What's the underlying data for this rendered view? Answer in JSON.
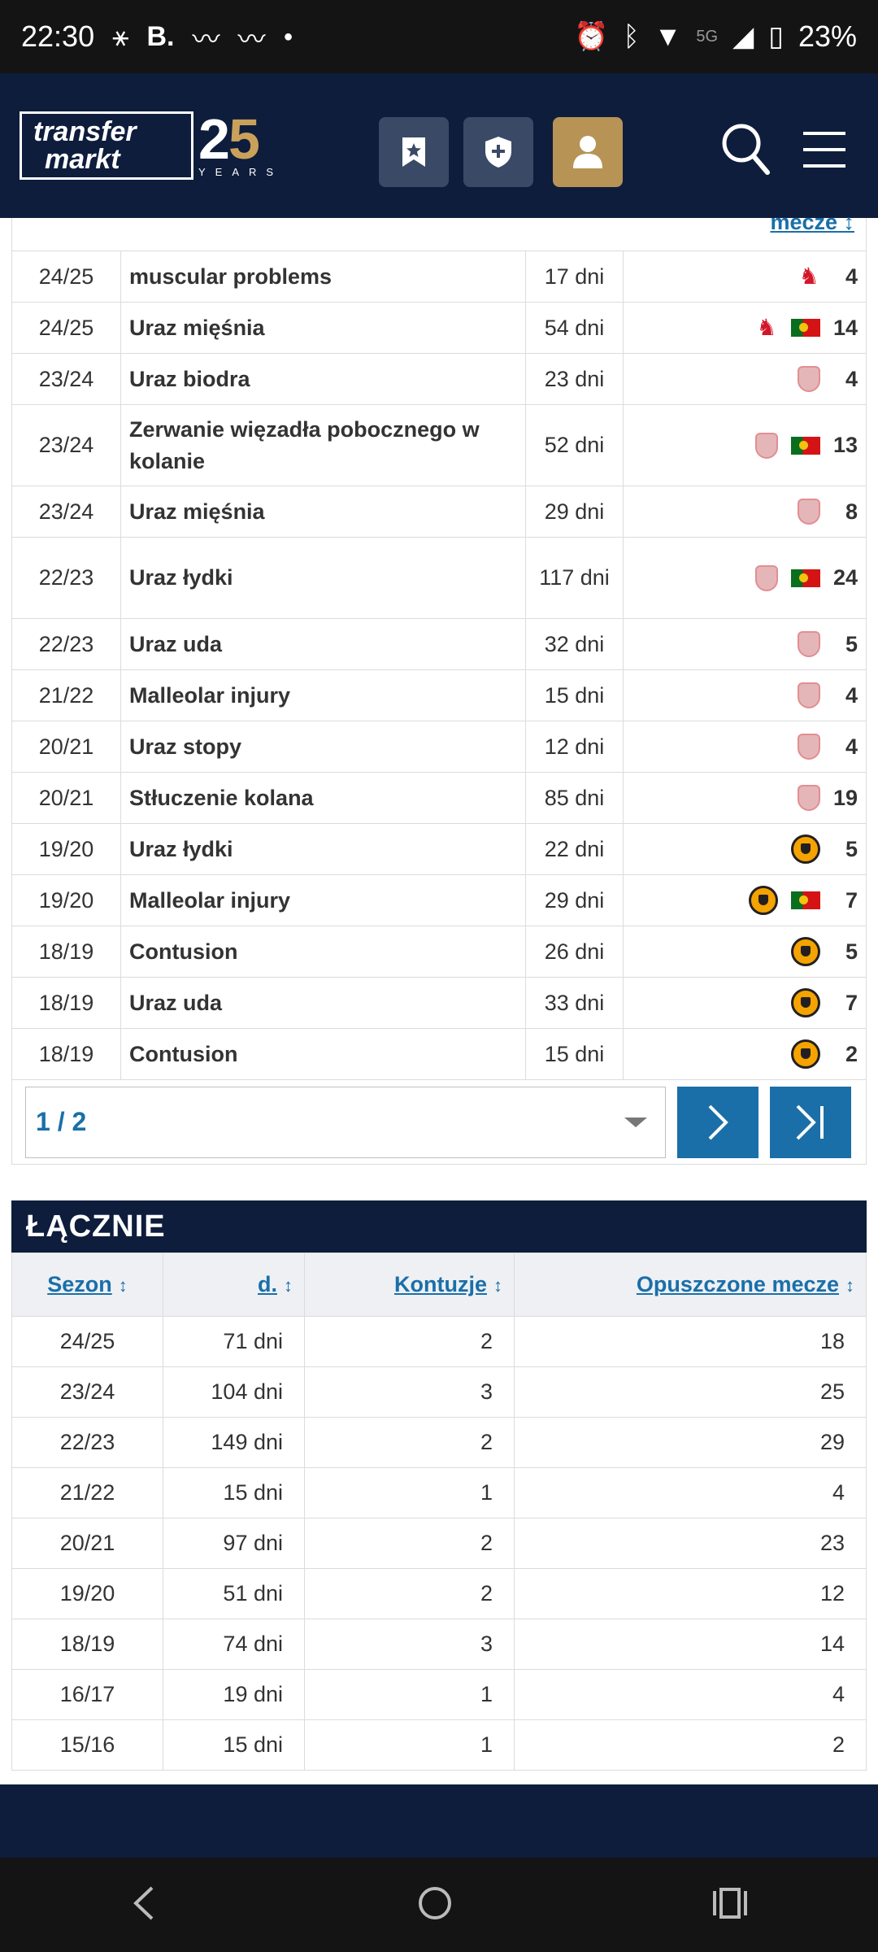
{
  "status_bar": {
    "time": "22:30",
    "battery": "23%",
    "network": "5G",
    "icons": [
      "nfc-icon",
      "b-app-icon",
      "health-icon",
      "health-icon",
      "dot-icon",
      "alarm-icon",
      "bluetooth-icon",
      "wifi-icon",
      "signal-icon",
      "battery-icon"
    ]
  },
  "header": {
    "logo_line1": "transfer",
    "logo_line2": "markt",
    "logo_num_a": "2",
    "logo_num_b": "5",
    "logo_years": "YEARS",
    "colors": {
      "navy": "#0e1d3c",
      "gold": "#b79356",
      "link": "#1a6fa8"
    }
  },
  "injuries": {
    "partial_header_text": "mecze ↕",
    "rows": [
      {
        "season": "24/25",
        "injury": "muscular problems",
        "days": "17 dni",
        "club": "lfc-bird",
        "national": false,
        "games": "4"
      },
      {
        "season": "24/25",
        "injury": "Uraz mięśnia",
        "days": "54 dni",
        "club": "lfc-bird",
        "national": true,
        "games": "14"
      },
      {
        "season": "23/24",
        "injury": "Uraz biodra",
        "days": "23 dni",
        "club": "lfc-crest",
        "national": false,
        "games": "4"
      },
      {
        "season": "23/24",
        "injury": "Zerwanie więzadła pobocznego w kolanie",
        "days": "52 dni",
        "club": "lfc-crest",
        "national": true,
        "games": "13"
      },
      {
        "season": "23/24",
        "injury": "Uraz mięśnia",
        "days": "29 dni",
        "club": "lfc-crest",
        "national": false,
        "games": "8"
      },
      {
        "season": "22/23",
        "injury": "Uraz łydki",
        "days": "117 dni",
        "club": "lfc-crest",
        "national": true,
        "games": "24"
      },
      {
        "season": "22/23",
        "injury": "Uraz uda",
        "days": "32 dni",
        "club": "lfc-crest",
        "national": false,
        "games": "5"
      },
      {
        "season": "21/22",
        "injury": "Malleolar injury",
        "days": "15 dni",
        "club": "lfc-crest",
        "national": false,
        "games": "4"
      },
      {
        "season": "20/21",
        "injury": "Uraz stopy",
        "days": "12 dni",
        "club": "lfc-crest",
        "national": false,
        "games": "4"
      },
      {
        "season": "20/21",
        "injury": "Stłuczenie kolana",
        "days": "85 dni",
        "club": "lfc-crest",
        "national": false,
        "games": "19"
      },
      {
        "season": "19/20",
        "injury": "Uraz łydki",
        "days": "22 dni",
        "club": "wolves",
        "national": false,
        "games": "5"
      },
      {
        "season": "19/20",
        "injury": "Malleolar injury",
        "days": "29 dni",
        "club": "wolves",
        "national": true,
        "games": "7"
      },
      {
        "season": "18/19",
        "injury": "Contusion",
        "days": "26 dni",
        "club": "wolves",
        "national": false,
        "games": "5"
      },
      {
        "season": "18/19",
        "injury": "Uraz uda",
        "days": "33 dni",
        "club": "wolves",
        "national": false,
        "games": "7"
      },
      {
        "season": "18/19",
        "injury": "Contusion",
        "days": "15 dni",
        "club": "wolves",
        "national": false,
        "games": "2"
      }
    ]
  },
  "pager": {
    "current": "1 / 2"
  },
  "summary": {
    "title": "ŁĄCZNIE",
    "columns": [
      "Sezon",
      "d.",
      "Kontuzje",
      "Opuszczone mecze"
    ],
    "sort_glyph": "↕",
    "rows": [
      [
        "24/25",
        "71 dni",
        "2",
        "18"
      ],
      [
        "23/24",
        "104 dni",
        "3",
        "25"
      ],
      [
        "22/23",
        "149 dni",
        "2",
        "29"
      ],
      [
        "21/22",
        "15 dni",
        "1",
        "4"
      ],
      [
        "20/21",
        "97 dni",
        "2",
        "23"
      ],
      [
        "19/20",
        "51 dni",
        "2",
        "12"
      ],
      [
        "18/19",
        "74 dni",
        "3",
        "14"
      ],
      [
        "16/17",
        "19 dni",
        "1",
        "4"
      ],
      [
        "15/16",
        "15 dni",
        "1",
        "2"
      ]
    ]
  }
}
